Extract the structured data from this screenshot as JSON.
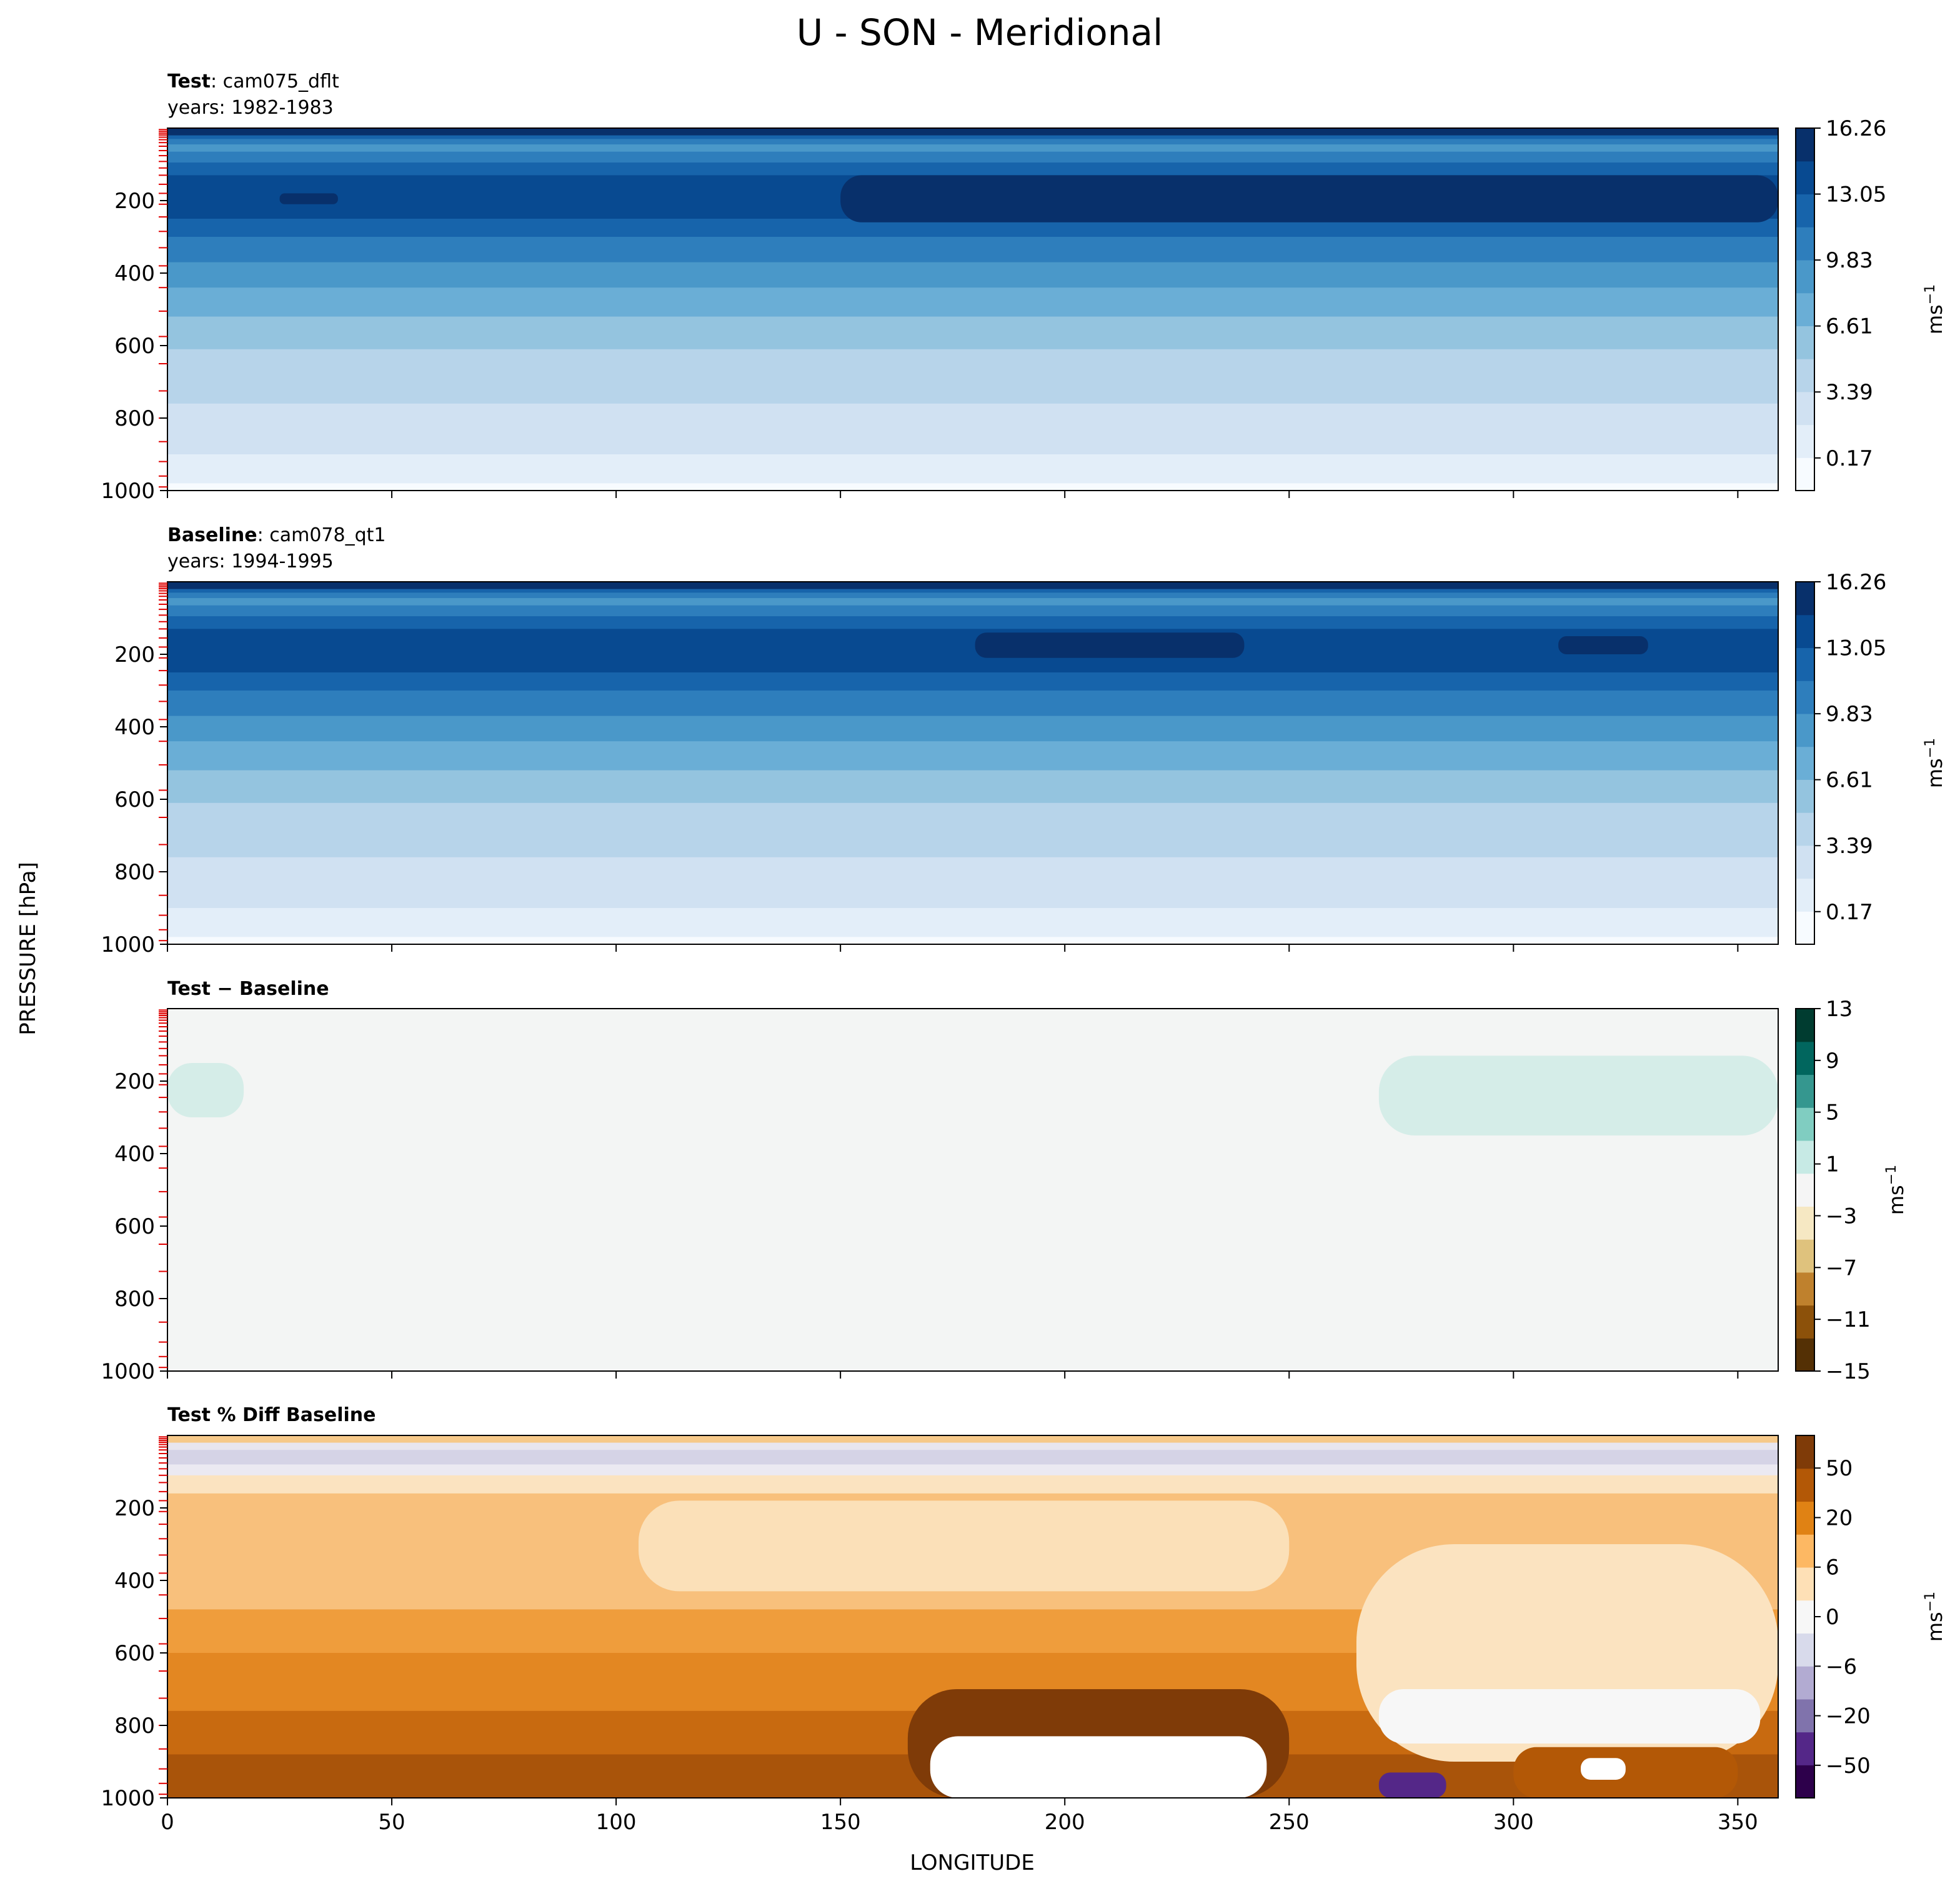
{
  "figure": {
    "title": "U - SON - Meridional",
    "ylabel": "PRESSURE [hPa]",
    "xlabel": "LONGITUDE"
  },
  "chart_data": [
    {
      "type": "heatmap",
      "panel": "test",
      "title_bold": "Test",
      "title_rest": ": cam075_dflt",
      "subtitle": "years: 1982-1983",
      "xlim": [
        0,
        359
      ],
      "ylim": [
        1000,
        0
      ],
      "x_ticks": [
        0,
        50,
        100,
        150,
        200,
        250,
        300,
        350
      ],
      "y_ticks": [
        200,
        400,
        600,
        800,
        1000
      ],
      "colorbar": {
        "ticks": [
          "0.17",
          "3.39",
          "6.61",
          "9.83",
          "13.05",
          "16.26"
        ],
        "label": "ms",
        "label_sup": "−1",
        "colors": [
          "#f7fbff",
          "#e3eef9",
          "#d0e1f2",
          "#b7d4ea",
          "#94c4df",
          "#6aaed6",
          "#4a98c9",
          "#2e7ebc",
          "#1764ab",
          "#084a91",
          "#08306b"
        ]
      },
      "bands": [
        {
          "p": 20,
          "color": "#08306b"
        },
        {
          "p": 30,
          "color": "#1764ab"
        },
        {
          "p": 45,
          "color": "#2e7ebc"
        },
        {
          "p": 65,
          "color": "#4a98c9"
        },
        {
          "p": 95,
          "color": "#2e7ebc"
        },
        {
          "p": 130,
          "color": "#1764ab"
        },
        {
          "p": 250,
          "color": "#084a91"
        },
        {
          "p": 300,
          "color": "#1764ab"
        },
        {
          "p": 370,
          "color": "#2e7ebc"
        },
        {
          "p": 440,
          "color": "#4a98c9"
        },
        {
          "p": 520,
          "color": "#6aaed6"
        },
        {
          "p": 610,
          "color": "#94c4df"
        },
        {
          "p": 760,
          "color": "#b7d4ea"
        },
        {
          "p": 900,
          "color": "#d0e1f2"
        },
        {
          "p": 980,
          "color": "#e3eef9"
        },
        {
          "p": 1000,
          "color": "#f7fbff"
        }
      ],
      "features": [
        {
          "lon0": 150,
          "lon1": 359,
          "p0": 130,
          "p1": 260,
          "color": "#08306b"
        },
        {
          "lon0": 25,
          "lon1": 38,
          "p0": 180,
          "p1": 210,
          "color": "#08306b"
        }
      ]
    },
    {
      "type": "heatmap",
      "panel": "baseline",
      "title_bold": "Baseline",
      "title_rest": ": cam078_qt1",
      "subtitle": "years: 1994-1995",
      "xlim": [
        0,
        359
      ],
      "ylim": [
        1000,
        0
      ],
      "x_ticks": [
        0,
        50,
        100,
        150,
        200,
        250,
        300,
        350
      ],
      "y_ticks": [
        200,
        400,
        600,
        800,
        1000
      ],
      "colorbar": {
        "ticks": [
          "0.17",
          "3.39",
          "6.61",
          "9.83",
          "13.05",
          "16.26"
        ],
        "label": "ms",
        "label_sup": "−1",
        "colors": [
          "#f7fbff",
          "#e3eef9",
          "#d0e1f2",
          "#b7d4ea",
          "#94c4df",
          "#6aaed6",
          "#4a98c9",
          "#2e7ebc",
          "#1764ab",
          "#084a91",
          "#08306b"
        ]
      },
      "bands": [
        {
          "p": 20,
          "color": "#08306b"
        },
        {
          "p": 30,
          "color": "#1764ab"
        },
        {
          "p": 45,
          "color": "#2e7ebc"
        },
        {
          "p": 65,
          "color": "#4a98c9"
        },
        {
          "p": 95,
          "color": "#2e7ebc"
        },
        {
          "p": 130,
          "color": "#1764ab"
        },
        {
          "p": 250,
          "color": "#084a91"
        },
        {
          "p": 300,
          "color": "#1764ab"
        },
        {
          "p": 370,
          "color": "#2e7ebc"
        },
        {
          "p": 440,
          "color": "#4a98c9"
        },
        {
          "p": 520,
          "color": "#6aaed6"
        },
        {
          "p": 610,
          "color": "#94c4df"
        },
        {
          "p": 760,
          "color": "#b7d4ea"
        },
        {
          "p": 900,
          "color": "#d0e1f2"
        },
        {
          "p": 980,
          "color": "#e3eef9"
        },
        {
          "p": 1000,
          "color": "#f7fbff"
        }
      ],
      "features": [
        {
          "lon0": 180,
          "lon1": 240,
          "p0": 140,
          "p1": 210,
          "color": "#08306b"
        },
        {
          "lon0": 310,
          "lon1": 330,
          "p0": 150,
          "p1": 200,
          "color": "#08306b"
        }
      ]
    },
    {
      "type": "heatmap",
      "panel": "diff",
      "title_bold": "Test − Baseline",
      "title_rest": "",
      "subtitle": "",
      "xlim": [
        0,
        359
      ],
      "ylim": [
        1000,
        0
      ],
      "x_ticks": [
        0,
        50,
        100,
        150,
        200,
        250,
        300,
        350
      ],
      "y_ticks": [
        200,
        400,
        600,
        800,
        1000
      ],
      "colorbar": {
        "ticks": [
          "−15",
          "−11",
          "−7",
          "−3",
          "1",
          "5",
          "9",
          "13"
        ],
        "label": "ms",
        "label_sup": "−1",
        "colors": [
          "#543005",
          "#8c510a",
          "#bf812d",
          "#dfc27d",
          "#f6e8c3",
          "#f5f5f5",
          "#c7eae5",
          "#80cdc1",
          "#35978f",
          "#01665e",
          "#003c30"
        ]
      },
      "bands": [
        {
          "p": 1000,
          "color": "#f3f5f4"
        }
      ],
      "features": [
        {
          "lon0": 0,
          "lon1": 17,
          "p0": 150,
          "p1": 300,
          "color": "#d5ede8"
        },
        {
          "lon0": 270,
          "lon1": 359,
          "p0": 130,
          "p1": 350,
          "color": "#d5ede8"
        }
      ]
    },
    {
      "type": "heatmap",
      "panel": "pctdiff",
      "title_bold": "Test % Diff Baseline",
      "title_rest": "",
      "subtitle": "",
      "xlim": [
        0,
        359
      ],
      "ylim": [
        1000,
        0
      ],
      "x_ticks": [
        0,
        50,
        100,
        150,
        200,
        250,
        300,
        350
      ],
      "x_tick_labels": [
        "0",
        "50",
        "100",
        "150",
        "200",
        "250",
        "300",
        "350"
      ],
      "y_ticks": [
        200,
        400,
        600,
        800,
        1000
      ],
      "colorbar": {
        "ticks": [
          "−50",
          "−20",
          "−6",
          "0",
          "6",
          "20",
          "50"
        ],
        "label": "ms",
        "label_sup": "−1",
        "colors": [
          "#2d004b",
          "#542788",
          "#8073ac",
          "#b2abd2",
          "#d8daeb",
          "#f7f7f7",
          "#fee0b6",
          "#fdb863",
          "#e08214",
          "#b35806",
          "#7f3b08"
        ]
      },
      "bands": [
        {
          "p": 20,
          "color": "#f6c98a"
        },
        {
          "p": 40,
          "color": "#e8e6f0"
        },
        {
          "p": 80,
          "color": "#d5d3e6"
        },
        {
          "p": 110,
          "color": "#ebe9f2"
        },
        {
          "p": 160,
          "color": "#fbe3c0"
        },
        {
          "p": 480,
          "color": "#f8c07c"
        },
        {
          "p": 600,
          "color": "#ef9d3c"
        },
        {
          "p": 760,
          "color": "#e38722"
        },
        {
          "p": 880,
          "color": "#c86a10"
        },
        {
          "p": 1000,
          "color": "#a9540a"
        }
      ],
      "features": [
        {
          "lon0": 105,
          "lon1": 250,
          "p0": 180,
          "p1": 430,
          "color": "#fbe0b8"
        },
        {
          "lon0": 265,
          "lon1": 359,
          "p0": 300,
          "p1": 900,
          "color": "#fbe3c0"
        },
        {
          "lon0": 270,
          "lon1": 355,
          "p0": 700,
          "p1": 850,
          "color": "#f7f7f7"
        },
        {
          "lon0": 165,
          "lon1": 250,
          "p0": 700,
          "p1": 1000,
          "color": "#7f3b08"
        },
        {
          "lon0": 170,
          "lon1": 245,
          "p0": 830,
          "p1": 1000,
          "color": "#ffffff"
        },
        {
          "lon0": 270,
          "lon1": 285,
          "p0": 930,
          "p1": 1000,
          "color": "#542788"
        },
        {
          "lon0": 300,
          "lon1": 350,
          "p0": 860,
          "p1": 1000,
          "color": "#b35806"
        },
        {
          "lon0": 315,
          "lon1": 325,
          "p0": 890,
          "p1": 950,
          "color": "#ffffff"
        }
      ]
    }
  ]
}
